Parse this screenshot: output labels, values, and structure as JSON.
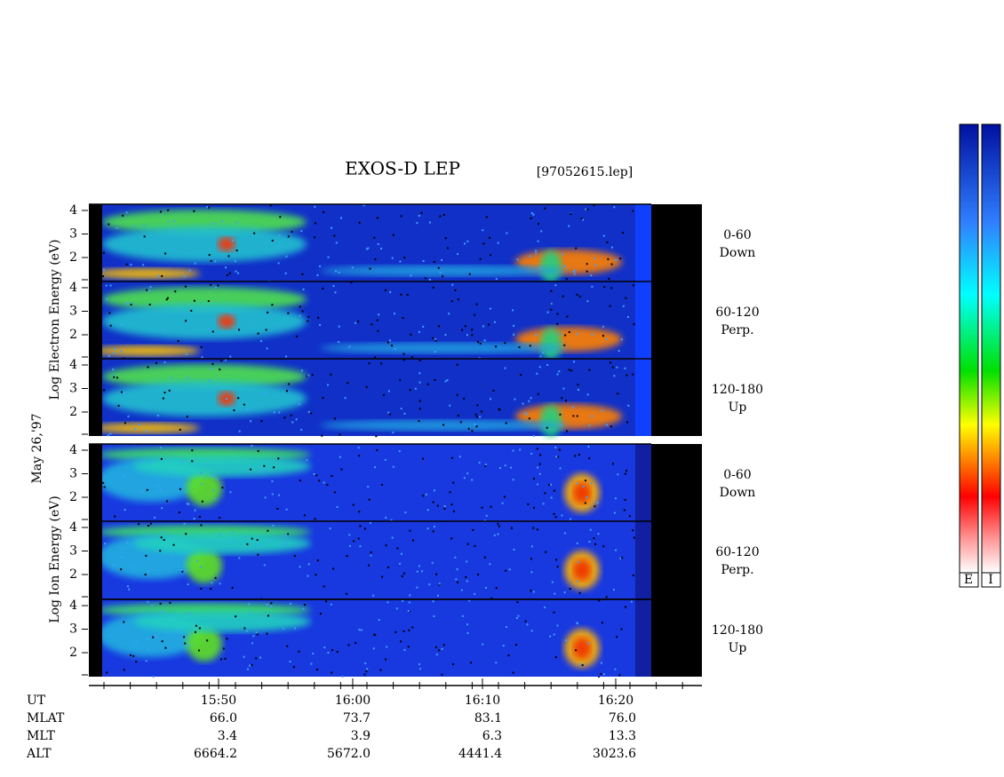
{
  "title": "EXOS-D LEP",
  "file": "[97052615.lep]",
  "electron_label": "Log Electron Energy (eV)",
  "ion_label": "Log Ion Energy (eV)",
  "date": "May 26,'97",
  "yticks": [
    "4",
    "3",
    "2"
  ],
  "panels": [
    {
      "angle": "0-60",
      "direction": "Down"
    },
    {
      "angle": "60-120",
      "direction": "Perp."
    },
    {
      "angle": "120-180",
      "direction": "Up"
    },
    {
      "angle": "0-60",
      "direction": "Down"
    },
    {
      "angle": "60-120",
      "direction": "Perp."
    },
    {
      "angle": "120-180",
      "direction": "Up"
    }
  ],
  "time_ticks": [
    "15:50",
    "16:00",
    "16:10",
    "16:20"
  ],
  "ephemeris": [
    {
      "label": "UT",
      "values": []
    },
    {
      "label": "MLAT",
      "values": [
        "66.0",
        "73.7",
        "83.1",
        "76.0"
      ]
    },
    {
      "label": "MLT",
      "values": [
        "3.4",
        "3.9",
        "6.3",
        "13.3"
      ]
    },
    {
      "label": "ALT",
      "values": [
        "6664.2",
        "5672.0",
        "4441.4",
        "3023.6"
      ]
    }
  ],
  "colorbar_labels": [
    "E",
    "I"
  ]
}
